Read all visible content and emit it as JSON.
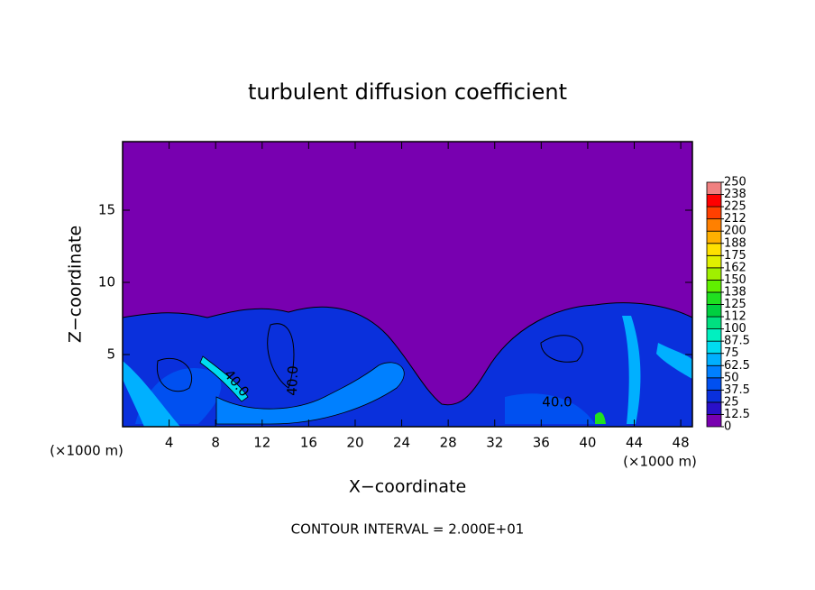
{
  "chart_data": {
    "type": "contour",
    "title": "turbulent diffusion coefficient",
    "xlabel": "X−coordinate",
    "ylabel": "Z−coordinate",
    "x_unit": "(×1000 m)",
    "y_unit": "(×1000 m)",
    "note": "CONTOUR INTERVAL = 2.000E+01",
    "contour_labels": [
      "40.0",
      "40.0",
      "40.0"
    ],
    "xlim": [
      0,
      49
    ],
    "ylim": [
      0,
      19.75
    ],
    "xticks": [
      4,
      8,
      12,
      16,
      20,
      24,
      28,
      32,
      36,
      40,
      44,
      48
    ],
    "yticks": [
      5,
      10,
      15
    ],
    "colorbar": {
      "ticks": [
        0,
        12.5,
        25,
        37.5,
        50,
        62.5,
        75,
        87.5,
        100,
        {
          "value": 112.5,
          "label": "112"
        },
        125,
        {
          "value": 137.5,
          "label": "138"
        },
        150,
        {
          "value": 162.5,
          "label": "162"
        },
        175,
        {
          "value": 187.5,
          "label": "188"
        },
        200,
        {
          "value": 212.5,
          "label": "212"
        },
        225,
        {
          "value": 237.5,
          "label": "238"
        },
        250
      ],
      "colors": [
        "#7800b0",
        "#2a10c8",
        "#0a30dc",
        "#0050f0",
        "#0080ff",
        "#00b0ff",
        "#00dcf0",
        "#00f0c0",
        "#00e080",
        "#00d040",
        "#20e020",
        "#60f000",
        "#a0f000",
        "#e0f000",
        "#ffe000",
        "#ffb000",
        "#ff8000",
        "#ff4000",
        "#ff0000",
        "#f08080"
      ]
    }
  }
}
